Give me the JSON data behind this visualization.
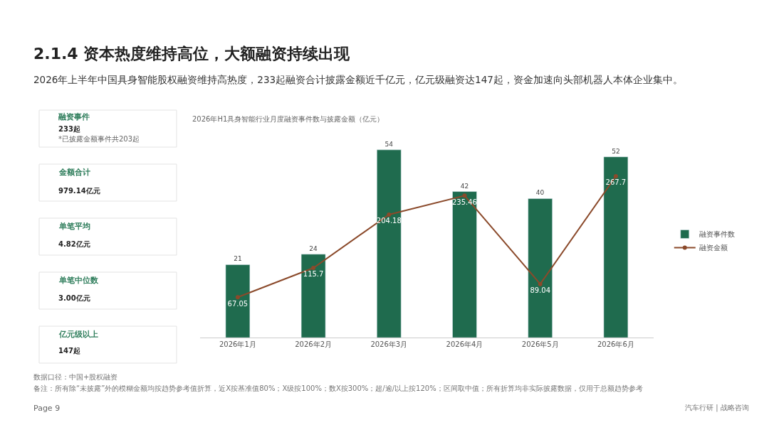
{
  "chart_data": {
    "type": "bar",
    "title": "2026年H1具身智能行业月度融资事件数与披露金额（亿元）",
    "categories": [
      "2026年1月",
      "2026年2月",
      "2026年3月",
      "2026年4月",
      "2026年5月",
      "2026年6月"
    ],
    "series": [
      {
        "name": "融资事件数",
        "color": "#1f6b4e",
        "values": [
          21,
          24,
          54,
          42,
          40,
          52
        ]
      },
      {
        "name": "融资金额",
        "type": "line",
        "axis": "y2",
        "color": "#8b4a2b",
        "marker": "circle",
        "values": [
          67.05,
          115.7,
          204.18,
          235.46,
          89.04,
          267.7
        ]
      }
    ],
    "data_labels": true,
    "legend": "right",
    "tick_labels": "x",
    "annotations": [
      "2.1.4 资本热度维持高位，大额融资持续出现",
      "2026年上半年中国具身智能股权融资维持高热度，233起融资合计披露金额近千亿元，亿元级融资达147起，资金加速向头部机器人本体企业集中。",
      "融资事件",
      "233起",
      "*已披露金额事件共203起",
      "金额合计",
      "979.14亿元",
      "单笔平均",
      "4.82亿元",
      "单笔中位数",
      "3.00亿元",
      "亿元级以上",
      "147起",
      "数据口径：中国+股权融资",
      "备注：所有除“未披露”外的模糊金额均按趋势参考值折算，近X按基准值80%；X级按100%；数X按300%；超/逾/以上按120%；区间取中值；所有折算均非实际披露数据，仅用于总额趋势参考",
      "Page 9",
      "汽车行研 | 战略咨询"
    ]
  }
}
